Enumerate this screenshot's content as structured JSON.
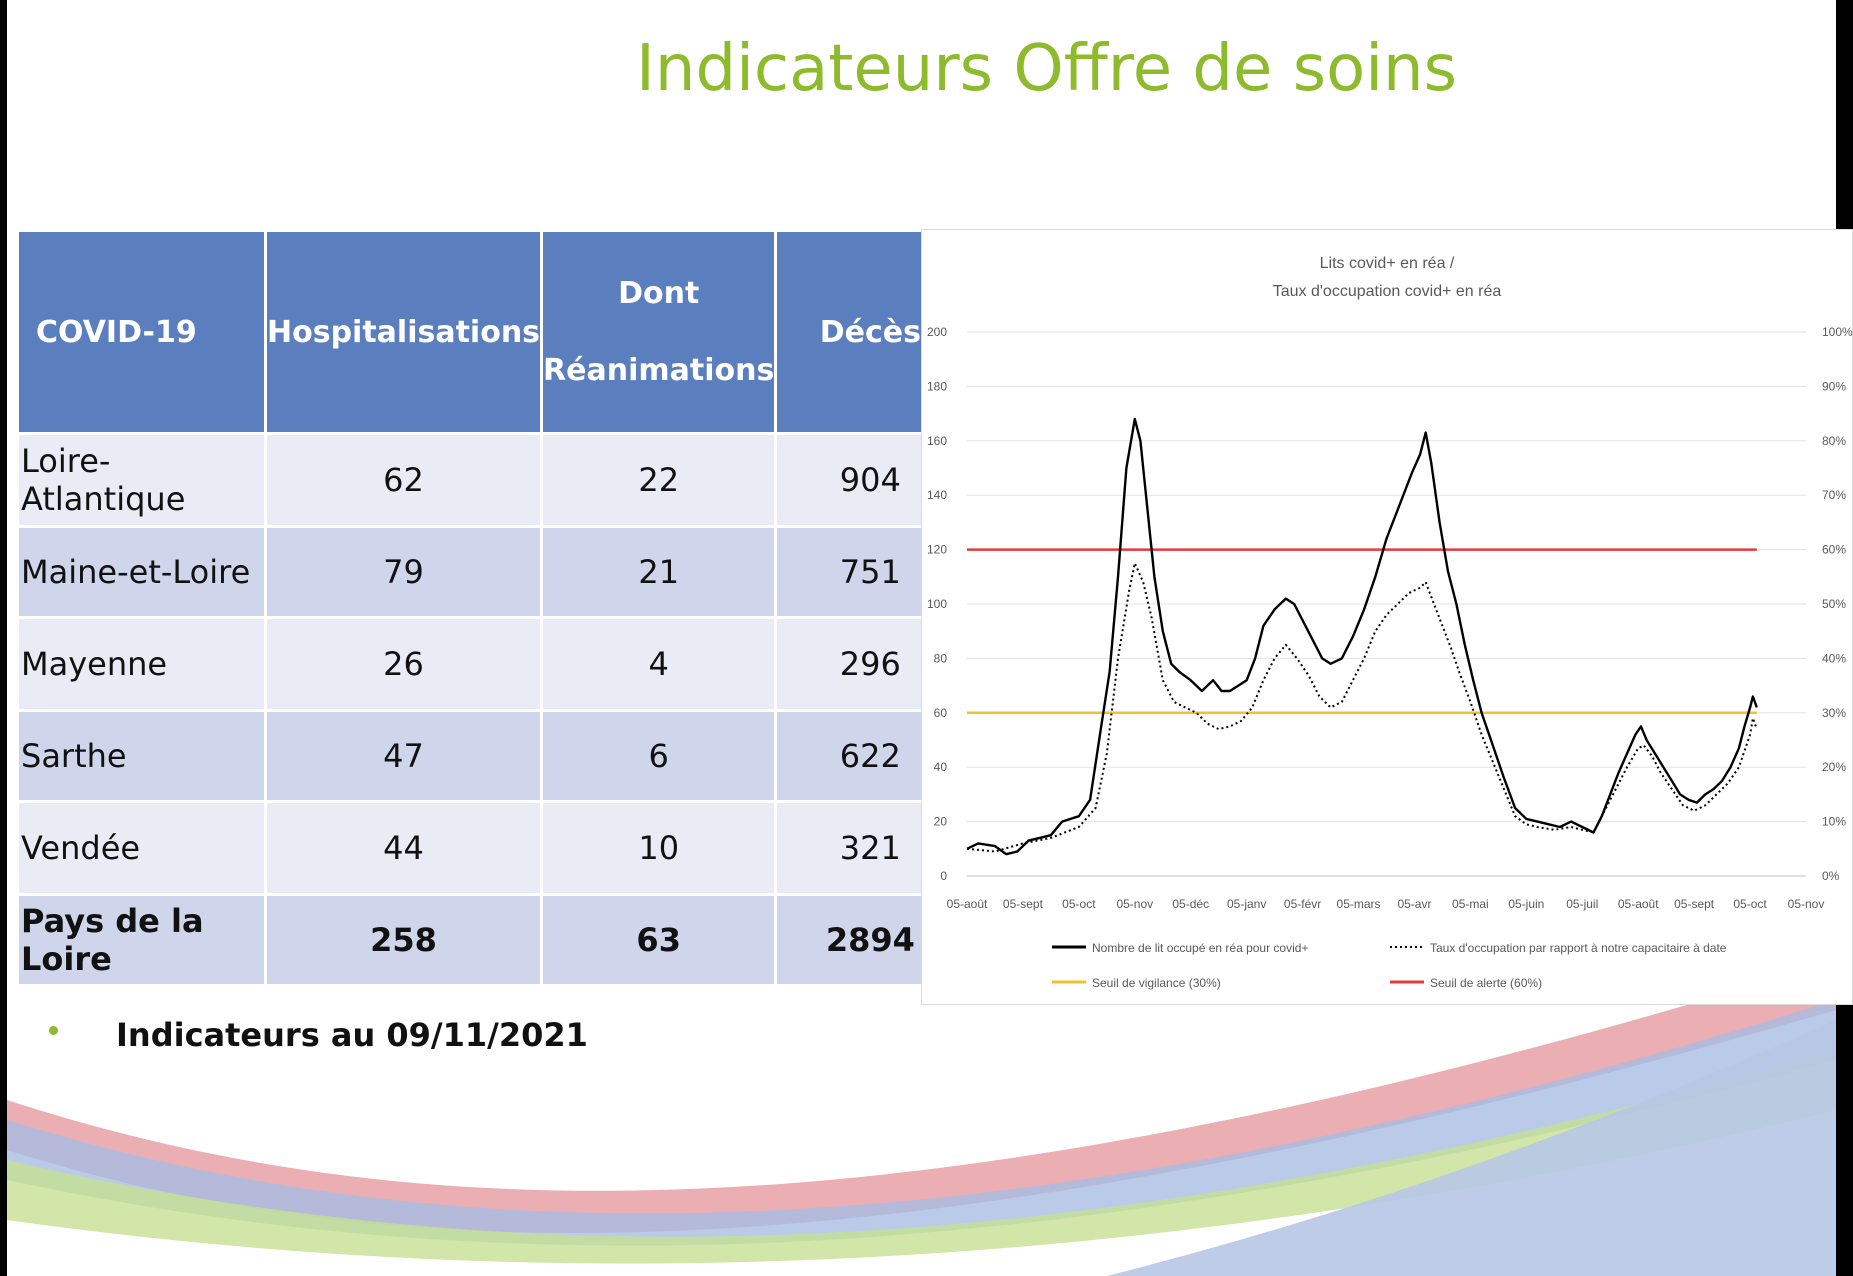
{
  "slide": {
    "title": "Indicateurs Offre de soins",
    "note": "Indicateurs au 09/11/2021",
    "colors": {
      "title": "#8dbb2b",
      "header_bg": "#5b7fbe",
      "row_light": "#e9ebf5",
      "row_dark": "#cfd5ea"
    }
  },
  "table": {
    "headers": {
      "col1": "COVID-19",
      "col2": "Hospitalisations",
      "col3_top": "Dont",
      "col3_bottom": "Réanimations",
      "col4": "Décès"
    },
    "rows": [
      {
        "region": "Loire-Atlantique",
        "hosp": "62",
        "rea": "22",
        "deces": "904"
      },
      {
        "region": "Maine-et-Loire",
        "hosp": "79",
        "rea": "21",
        "deces": "751"
      },
      {
        "region": "Mayenne",
        "hosp": "26",
        "rea": "4",
        "deces": "296"
      },
      {
        "region": "Sarthe",
        "hosp": "47",
        "rea": "6",
        "deces": "622"
      },
      {
        "region": "Vendée",
        "hosp": "44",
        "rea": "10",
        "deces": "321"
      },
      {
        "region": "Pays de la Loire",
        "hosp": "258",
        "rea": "63",
        "deces": "2894"
      }
    ]
  },
  "chart_data": {
    "type": "line",
    "title": "Lits covid+ en réa /",
    "subtitle": "Taux d'occupation covid+ en réa",
    "x": [
      "05-août",
      "05-sept",
      "05-oct",
      "05-nov",
      "05-déc",
      "05-janv",
      "05-févr",
      "05-mars",
      "05-avr",
      "05-mai",
      "05-juin",
      "05-juil",
      "05-août",
      "05-sept",
      "05-oct",
      "05-nov"
    ],
    "ylim": [
      0,
      200
    ],
    "yticks": [
      "0",
      "20",
      "40",
      "60",
      "80",
      "100",
      "120",
      "140",
      "160",
      "180",
      "200"
    ],
    "y2ticks": [
      "0%",
      "10%",
      "20%",
      "30%",
      "40%",
      "50%",
      "60%",
      "70%",
      "80%",
      "90%",
      "100%"
    ],
    "grid": true,
    "legend_position": "bottom",
    "series": [
      {
        "name": "Nombre de lit occupé en réa pour covid+",
        "color": "#000000",
        "style": "solid",
        "points": [
          [
            0,
            10
          ],
          [
            0.2,
            12
          ],
          [
            0.5,
            11
          ],
          [
            0.7,
            8
          ],
          [
            0.9,
            9
          ],
          [
            1.1,
            13
          ],
          [
            1.3,
            14
          ],
          [
            1.5,
            15
          ],
          [
            1.7,
            20
          ],
          [
            2.0,
            22
          ],
          [
            2.2,
            28
          ],
          [
            2.4,
            55
          ],
          [
            2.55,
            75
          ],
          [
            2.7,
            110
          ],
          [
            2.85,
            150
          ],
          [
            3.0,
            168
          ],
          [
            3.1,
            160
          ],
          [
            3.2,
            140
          ],
          [
            3.35,
            110
          ],
          [
            3.5,
            90
          ],
          [
            3.65,
            78
          ],
          [
            3.8,
            75
          ],
          [
            4.0,
            72
          ],
          [
            4.2,
            68
          ],
          [
            4.4,
            72
          ],
          [
            4.55,
            68
          ],
          [
            4.7,
            68
          ],
          [
            4.85,
            70
          ],
          [
            5.0,
            72
          ],
          [
            5.15,
            80
          ],
          [
            5.3,
            92
          ],
          [
            5.5,
            98
          ],
          [
            5.7,
            102
          ],
          [
            5.85,
            100
          ],
          [
            6.0,
            94
          ],
          [
            6.2,
            86
          ],
          [
            6.35,
            80
          ],
          [
            6.5,
            78
          ],
          [
            6.7,
            80
          ],
          [
            6.9,
            88
          ],
          [
            7.1,
            98
          ],
          [
            7.3,
            110
          ],
          [
            7.5,
            124
          ],
          [
            7.65,
            132
          ],
          [
            7.8,
            140
          ],
          [
            7.95,
            148
          ],
          [
            8.1,
            155
          ],
          [
            8.2,
            163
          ],
          [
            8.3,
            152
          ],
          [
            8.45,
            130
          ],
          [
            8.6,
            112
          ],
          [
            8.75,
            100
          ],
          [
            8.9,
            85
          ],
          [
            9.05,
            72
          ],
          [
            9.2,
            60
          ],
          [
            9.4,
            48
          ],
          [
            9.6,
            36
          ],
          [
            9.8,
            25
          ],
          [
            10.0,
            21
          ],
          [
            10.2,
            20
          ],
          [
            10.4,
            19
          ],
          [
            10.6,
            18
          ],
          [
            10.8,
            20
          ],
          [
            11.0,
            18
          ],
          [
            11.2,
            16
          ],
          [
            11.35,
            22
          ],
          [
            11.5,
            30
          ],
          [
            11.65,
            38
          ],
          [
            11.8,
            45
          ],
          [
            11.95,
            52
          ],
          [
            12.05,
            55
          ],
          [
            12.15,
            50
          ],
          [
            12.3,
            45
          ],
          [
            12.45,
            40
          ],
          [
            12.6,
            35
          ],
          [
            12.75,
            30
          ],
          [
            12.9,
            28
          ],
          [
            13.05,
            27
          ],
          [
            13.2,
            30
          ],
          [
            13.35,
            32
          ],
          [
            13.5,
            35
          ],
          [
            13.65,
            40
          ],
          [
            13.8,
            47
          ],
          [
            13.9,
            55
          ],
          [
            14.0,
            62
          ],
          [
            14.05,
            66
          ],
          [
            14.12,
            62
          ]
        ]
      },
      {
        "name": "Taux d'occupation par rapport à notre capacitaire à date",
        "color": "#000000",
        "style": "dotted",
        "points": [
          [
            0,
            10
          ],
          [
            0.5,
            9
          ],
          [
            1.0,
            12
          ],
          [
            1.5,
            14
          ],
          [
            2.0,
            18
          ],
          [
            2.3,
            25
          ],
          [
            2.5,
            45
          ],
          [
            2.7,
            80
          ],
          [
            2.9,
            105
          ],
          [
            3.0,
            115
          ],
          [
            3.15,
            108
          ],
          [
            3.3,
            95
          ],
          [
            3.5,
            72
          ],
          [
            3.7,
            64
          ],
          [
            3.9,
            62
          ],
          [
            4.1,
            60
          ],
          [
            4.3,
            56
          ],
          [
            4.5,
            54
          ],
          [
            4.7,
            55
          ],
          [
            4.9,
            57
          ],
          [
            5.1,
            62
          ],
          [
            5.3,
            72
          ],
          [
            5.5,
            80
          ],
          [
            5.7,
            85
          ],
          [
            5.9,
            80
          ],
          [
            6.1,
            74
          ],
          [
            6.3,
            66
          ],
          [
            6.5,
            62
          ],
          [
            6.7,
            64
          ],
          [
            6.9,
            72
          ],
          [
            7.1,
            80
          ],
          [
            7.3,
            90
          ],
          [
            7.5,
            96
          ],
          [
            7.7,
            100
          ],
          [
            7.9,
            104
          ],
          [
            8.1,
            106
          ],
          [
            8.2,
            108
          ],
          [
            8.35,
            100
          ],
          [
            8.5,
            92
          ],
          [
            8.65,
            84
          ],
          [
            8.8,
            75
          ],
          [
            9.0,
            64
          ],
          [
            9.2,
            52
          ],
          [
            9.4,
            42
          ],
          [
            9.6,
            32
          ],
          [
            9.8,
            22
          ],
          [
            10.0,
            19
          ],
          [
            10.2,
            18
          ],
          [
            10.5,
            17
          ],
          [
            10.8,
            18
          ],
          [
            11.0,
            17
          ],
          [
            11.2,
            16
          ],
          [
            11.4,
            24
          ],
          [
            11.6,
            32
          ],
          [
            11.8,
            40
          ],
          [
            12.0,
            47
          ],
          [
            12.1,
            48
          ],
          [
            12.25,
            44
          ],
          [
            12.4,
            38
          ],
          [
            12.6,
            32
          ],
          [
            12.8,
            26
          ],
          [
            13.0,
            24
          ],
          [
            13.2,
            26
          ],
          [
            13.4,
            30
          ],
          [
            13.6,
            34
          ],
          [
            13.8,
            40
          ],
          [
            14.0,
            52
          ],
          [
            14.05,
            58
          ],
          [
            14.12,
            54
          ]
        ]
      },
      {
        "name": "Seuil de vigilance (30%)",
        "color": "#f2c12e",
        "style": "solid",
        "points": [
          [
            0,
            60
          ],
          [
            14.12,
            60
          ]
        ]
      },
      {
        "name": "Seuil de alerte (60%)",
        "color": "#e8383b",
        "style": "solid",
        "points": [
          [
            0,
            120
          ],
          [
            14.12,
            120
          ]
        ]
      }
    ]
  }
}
